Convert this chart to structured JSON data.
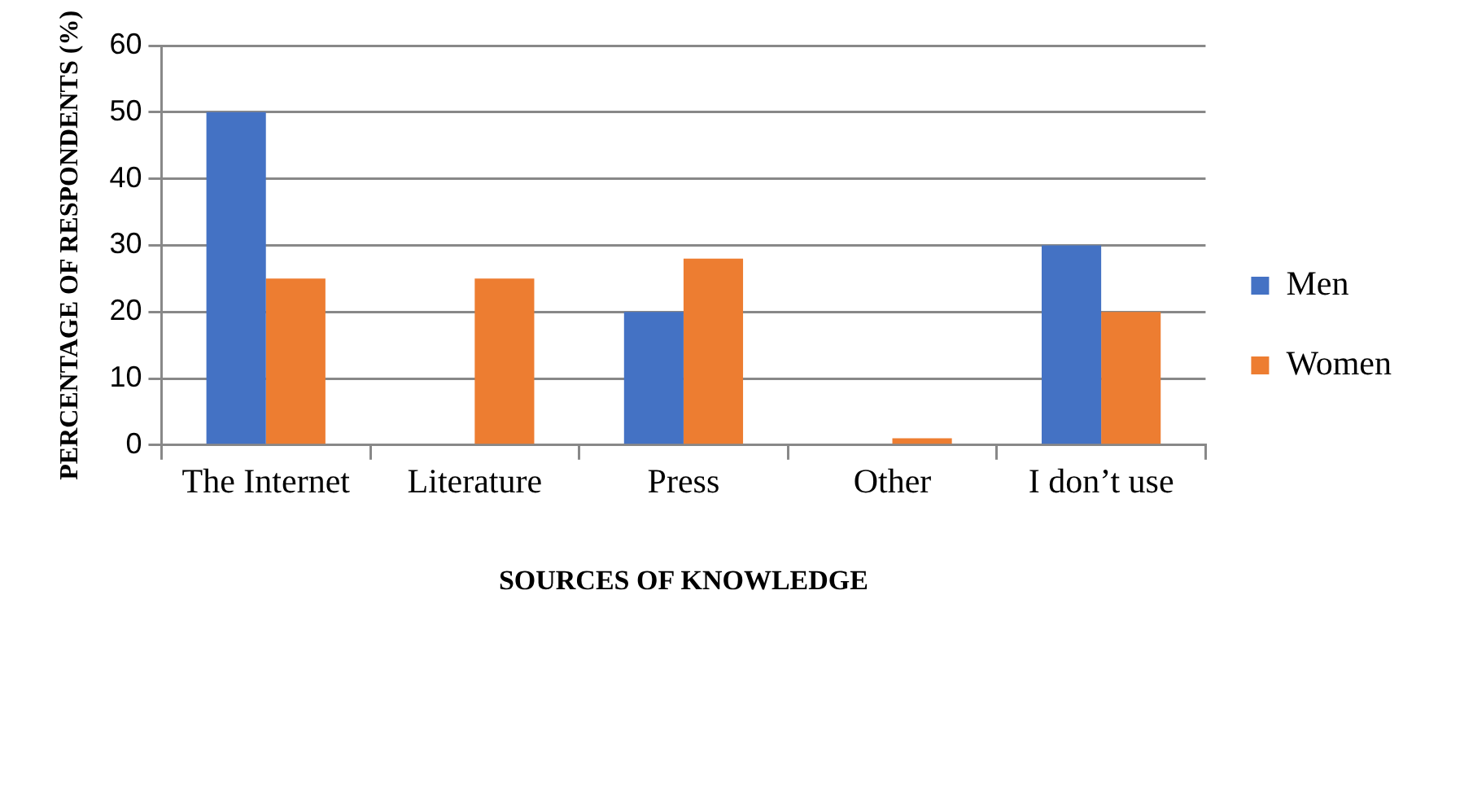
{
  "chart_data": {
    "type": "bar",
    "xlabel": "SOURCES OF KNOWLEDGE",
    "ylabel": "PERCENTAGE OF RESPONDENTS (%)",
    "categories": [
      "The Internet",
      "Literature",
      "Press",
      "Other",
      "I don’t use"
    ],
    "series": [
      {
        "name": "Men",
        "color": "#4472c4",
        "values": [
          50,
          0,
          20,
          0,
          30
        ]
      },
      {
        "name": "Women",
        "color": "#ed7d31",
        "values": [
          25,
          25,
          28,
          1,
          20
        ]
      }
    ],
    "ylim": [
      0,
      60
    ],
    "yticks": [
      0,
      10,
      20,
      30,
      40,
      50,
      60
    ],
    "grid": "y",
    "legend": "right"
  }
}
